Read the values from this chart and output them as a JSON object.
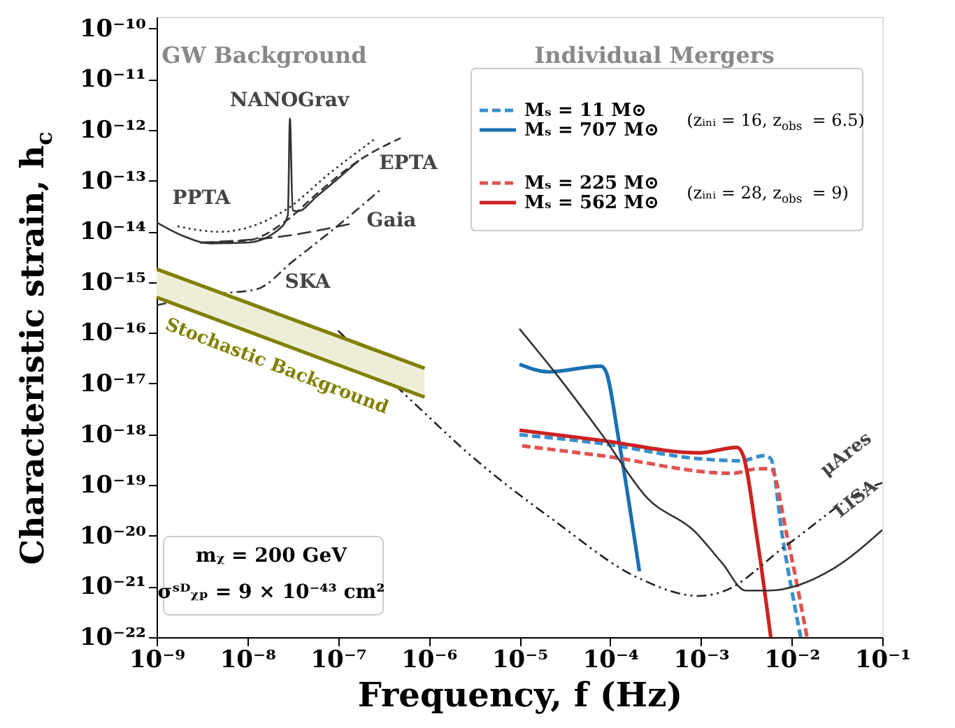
{
  "chart_data": {
    "type": "line",
    "xlabel": "Frequency, f (Hz)",
    "ylabel": "Characteristic strain, h$_{c}$",
    "log": "xy",
    "grid": false,
    "legend": "top right",
    "xlim": [
      1e-09,
      0.1
    ],
    "ylim": [
      1e-22,
      1.7e-10
    ],
    "xticks": [
      {
        "value": 1e-09,
        "label": "10⁻⁹"
      },
      {
        "value": 1e-08,
        "label": "10⁻⁸"
      },
      {
        "value": 1e-07,
        "label": "10⁻⁷"
      },
      {
        "value": 1e-06,
        "label": "10⁻⁶"
      },
      {
        "value": 1e-05,
        "label": "10⁻⁵"
      },
      {
        "value": 0.0001,
        "label": "10⁻⁴"
      },
      {
        "value": 0.001,
        "label": "10⁻³"
      },
      {
        "value": 0.01,
        "label": "10⁻²"
      },
      {
        "value": 0.1,
        "label": "10⁻¹"
      }
    ],
    "yticks": [
      {
        "value": 1e-10,
        "label": "10⁻¹⁰"
      },
      {
        "value": 1e-11,
        "label": "10⁻¹¹"
      },
      {
        "value": 1e-12,
        "label": "10⁻¹²"
      },
      {
        "value": 1e-13,
        "label": "10⁻¹³"
      },
      {
        "value": 1e-14,
        "label": "10⁻¹⁴"
      },
      {
        "value": 1e-15,
        "label": "10⁻¹⁵"
      },
      {
        "value": 1e-16,
        "label": "10⁻¹⁶"
      },
      {
        "value": 1e-17,
        "label": "10⁻¹⁷"
      },
      {
        "value": 1e-18,
        "label": "10⁻¹⁸"
      },
      {
        "value": 1e-19,
        "label": "10⁻¹⁹"
      },
      {
        "value": 1e-20,
        "label": "10⁻²⁰"
      },
      {
        "value": 1e-21,
        "label": "10⁻²¹"
      },
      {
        "value": 1e-22,
        "label": "10⁻²²"
      }
    ],
    "annotations": [
      "GW Background",
      "Individual Mergers",
      "(zᵢₙᵢ = 16, z$_{obs}$ = 6.5)",
      "(zᵢₙᵢ = 28, z$_{obs}$ = 9)",
      "mᵪ = 200 GeV",
      "σˢᴰᵪₚ = 9 × 10⁻⁴³ cm²"
    ],
    "series": [
      {
        "name": "Mₛ = 11 M⊙",
        "color": "#3a8fcc",
        "line_style": "dashed",
        "x": [
          1e-05,
          7.9e-05,
          0.00095,
          0.0028,
          0.005,
          0.0059,
          0.0079,
          0.0126
        ],
        "values": [
          9.8e-19,
          6.6e-19,
          3.3e-19,
          3e-19,
          3.8e-19,
          3.3e-19,
          1e-20,
          1e-22
        ]
      },
      {
        "name": "Mₛ = 707 M⊙",
        "color": "#1a70b0",
        "line_style": "solid",
        "x": [
          1e-05,
          2.1e-05,
          7.9e-05,
          8.9e-05,
          0.000126,
          0.00021
        ],
        "values": [
          2.4e-17,
          1.7e-17,
          2.2e-17,
          1.8e-17,
          6.8e-19,
          2e-21
        ]
      },
      {
        "name": "Mₛ = 225 M⊙",
        "color": "#dd5450",
        "line_style": "dashed",
        "x": [
          1.07e-05,
          7.9e-05,
          0.0022,
          0.0044,
          0.0059,
          0.0089,
          0.0148
        ],
        "values": [
          5.9e-19,
          3.8e-19,
          1.7e-19,
          2.1e-19,
          2.1e-19,
          1e-20,
          1e-22
        ]
      },
      {
        "name": "Mₛ = 562 M⊙",
        "color": "#cc2222",
        "line_style": "solid",
        "x": [
          1e-05,
          7.9e-05,
          0.00095,
          0.0025,
          0.0029,
          0.0042,
          0.0059
        ],
        "values": [
          1.2e-18,
          7.6e-19,
          4.3e-19,
          5.5e-19,
          4e-19,
          8.1e-21,
          1e-22
        ]
      },
      {
        "name": "LISA",
        "color": "#333333",
        "line_style": "solid",
        "x": [
          1e-05,
          2.5e-05,
          7.9e-05,
          0.00026,
          0.00085,
          0.00174,
          0.0031,
          0.0056,
          0.0295,
          0.1
        ],
        "values": [
          1.2e-16,
          1.6e-17,
          1.05e-18,
          5.4e-20,
          1.23e-20,
          2.8e-21,
          8.3e-22,
          8.3e-22,
          2.3e-21,
          1.3e-20
        ]
      },
      {
        "name": "μAres",
        "color": "#222222",
        "line_style": "dashdotdot",
        "x": [
          1e-07,
          1e-06,
          2.3e-06,
          2.5e-05,
          0.0002,
          0.00095,
          0.00174,
          0.0089,
          0.085,
          0.1
        ],
        "values": [
          1.1e-16,
          2.2e-18,
          5.5e-19,
          1.9e-20,
          1.5e-21,
          6.5e-22,
          7.9e-22,
          6.6e-21,
          1e-19,
          1.1e-19
        ]
      },
      {
        "name": "NANOGrav",
        "color": "#333333",
        "line_style": "solid",
        "x": [
          1e-09,
          1.9e-09,
          3.9e-09,
          1e-08,
          2.3e-08,
          2.8e-08,
          2.95e-08,
          3.16e-08,
          3.6e-08,
          5.9e-08,
          1.7e-07
        ],
        "values": [
          1.5e-14,
          8.3e-15,
          5.8e-15,
          6e-15,
          1.15e-14,
          2.1e-14,
          1.7e-12,
          2.6e-14,
          2.5e-14,
          5e-14,
          2.5e-13
        ]
      },
      {
        "name": "EPTA",
        "color": "#333333",
        "line_style": "dashed",
        "x": [
          3e-09,
          1e-08,
          2.6e-08,
          5.9e-08,
          1.7e-07,
          4.9e-07
        ],
        "values": [
          6e-15,
          6.6e-15,
          1.55e-14,
          5.6e-14,
          2.5e-13,
          6.9e-13
        ]
      },
      {
        "name": "PPTA",
        "color": "#333333",
        "line_style": "dotted",
        "x": [
          1.7e-09,
          4.9e-09,
          2.6e-08,
          8.3e-08,
          2.6e-07
        ],
        "values": [
          1.26e-14,
          9.8e-15,
          2.6e-14,
          1.45e-13,
          6.8e-13
        ]
      },
      {
        "name": "Gaia",
        "color": "#333333",
        "line_style": "longdashed",
        "x": [
          3e-09,
          2.9e-08,
          1.35e-07
        ],
        "values": [
          6e-15,
          8.3e-15,
          1.4e-14
        ]
      },
      {
        "name": "SKA",
        "color": "#333333",
        "line_style": "dashdot",
        "x": [
          1e-09,
          4.9e-09,
          1.26e-08,
          3.2e-08,
          1.05e-07,
          3.1e-07
        ],
        "values": [
          3.5e-16,
          5.9e-16,
          7.2e-16,
          2.6e-15,
          1.4e-14,
          7.2e-14
        ]
      },
      {
        "name": "Stochastic Background",
        "type": "line",
        "color": "#808000",
        "x": [
          1e-09,
          9e-07
        ],
        "values": [
          1.8e-15,
          2e-17
        ],
        "lower": [
          5e-16,
          5.4e-18
        ],
        "upper": [
          1.8e-15,
          2e-17
        ]
      }
    ]
  }
}
